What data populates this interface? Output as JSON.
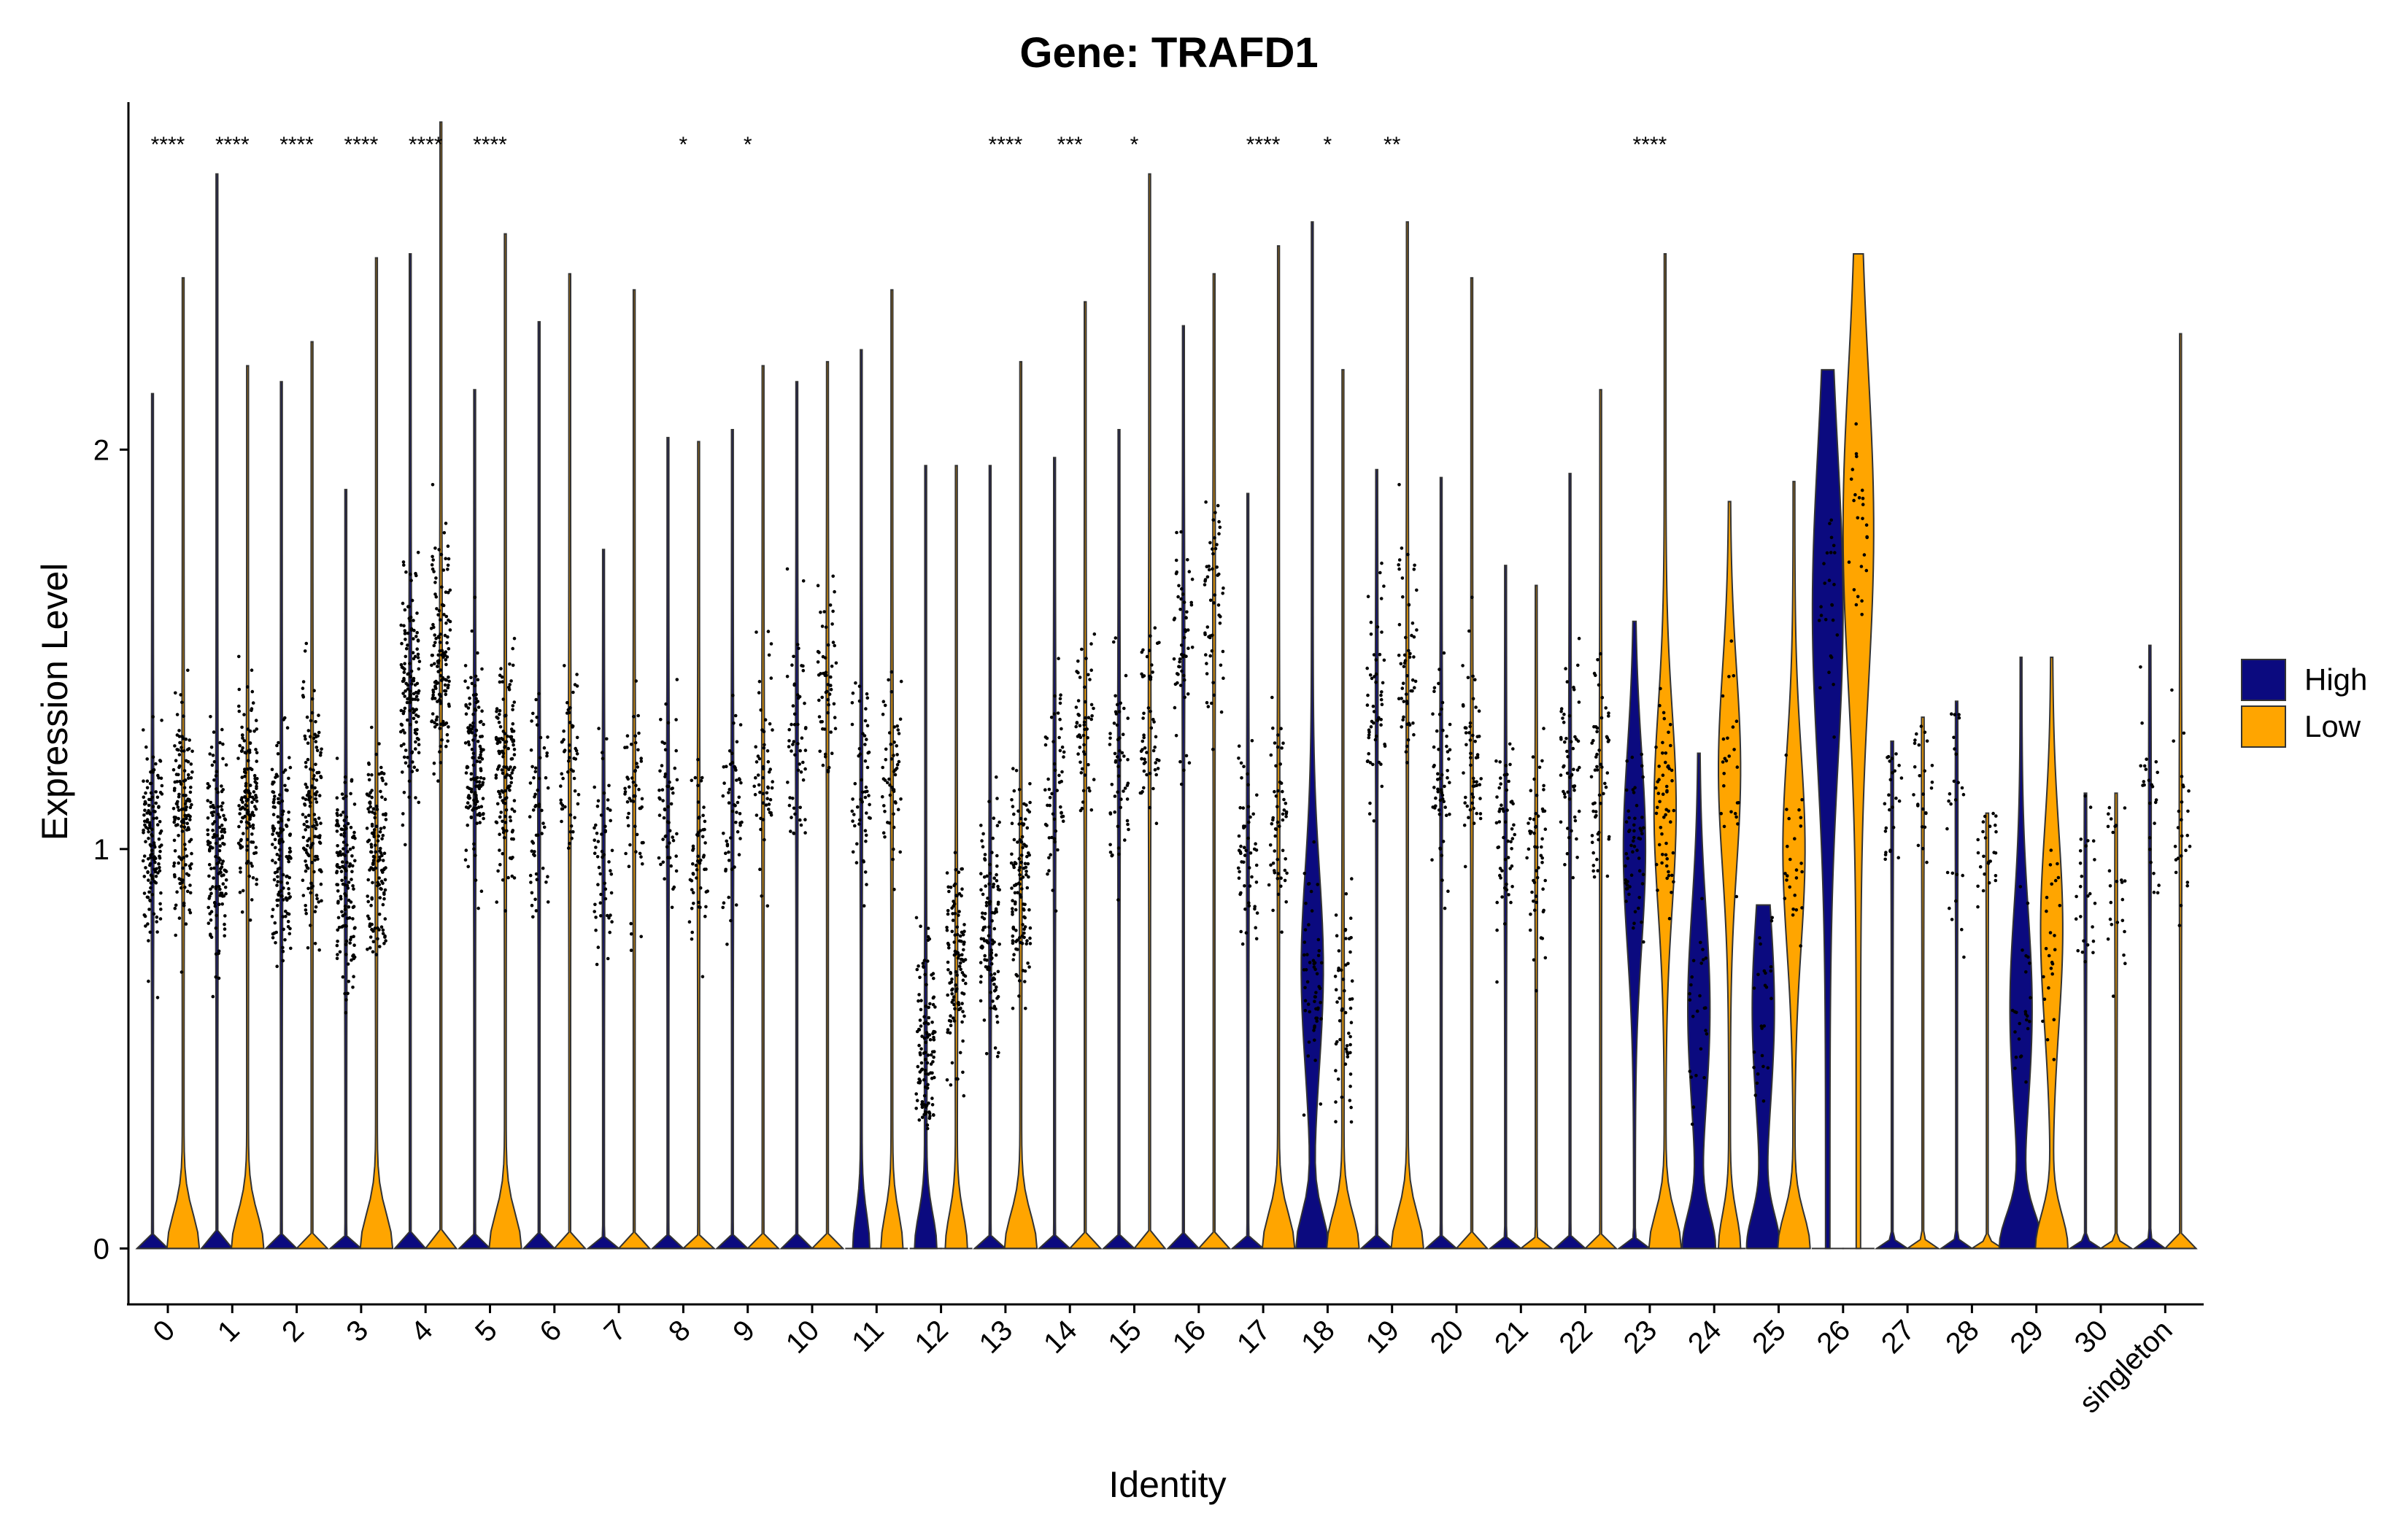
{
  "chart_data": {
    "type": "violin",
    "title": "Gene: TRAFD1",
    "xlabel": "Identity",
    "ylabel": "Expression Level",
    "ylim": [
      -0.14,
      2.87
    ],
    "yticks": [
      0,
      1,
      2
    ],
    "categories": [
      "0",
      "1",
      "2",
      "3",
      "4",
      "5",
      "6",
      "7",
      "8",
      "9",
      "10",
      "11",
      "12",
      "13",
      "14",
      "15",
      "16",
      "17",
      "18",
      "19",
      "20",
      "21",
      "22",
      "23",
      "24",
      "25",
      "26",
      "27",
      "28",
      "29",
      "30",
      "singleton"
    ],
    "legend": {
      "placement": "right",
      "items": [
        {
          "label": "High",
          "color": "#0b0a7f"
        },
        {
          "label": "Low",
          "color": "#ffa500"
        }
      ]
    },
    "significance": [
      "****",
      "****",
      "****",
      "****",
      "****",
      "****",
      "",
      "",
      "*",
      "*",
      "",
      "",
      "",
      "****",
      "***",
      "*",
      "",
      "****",
      "*",
      "**",
      "",
      "",
      "",
      "****",
      "",
      "",
      "",
      "",
      "",
      "",
      "",
      ""
    ],
    "series": [
      {
        "name": "High",
        "color": "#0b0a7f",
        "max": [
          2.14,
          2.69,
          2.17,
          1.9,
          2.49,
          2.15,
          2.32,
          1.75,
          2.03,
          2.05,
          2.17,
          2.25,
          1.96,
          1.96,
          1.98,
          2.05,
          2.31,
          1.89,
          2.57,
          1.95,
          1.93,
          1.71,
          1.94,
          1.57,
          1.24,
          0.86,
          2.2,
          1.27,
          1.37,
          1.48,
          1.14,
          1.51
        ],
        "median": [
          1.0,
          1.0,
          1.0,
          0.92,
          1.4,
          1.2,
          1.1,
          1.0,
          1.1,
          1.1,
          1.3,
          1.2,
          0.5,
          0.8,
          1.2,
          1.2,
          1.5,
          1.0,
          0.7,
          1.4,
          1.2,
          1.0,
          1.2,
          1.0,
          0.6,
          0.6,
          1.6,
          1.2,
          1.1,
          0.6,
          0.9,
          1.1
        ],
        "zero_frac": [
          0.0,
          0.0,
          0.0,
          0.0,
          0.0,
          0.0,
          0.0,
          0.0,
          0.0,
          0.0,
          0.0,
          0.15,
          0.2,
          0.0,
          0.0,
          0.0,
          0.0,
          0.0,
          0.3,
          0.0,
          0.0,
          0.0,
          0.0,
          0.0,
          0.3,
          0.3,
          0.0,
          0.0,
          0.0,
          0.4,
          0.0,
          0.0
        ]
      },
      {
        "name": "Low",
        "color": "#ffa500",
        "max": [
          2.43,
          2.21,
          2.27,
          2.48,
          2.82,
          2.54,
          2.44,
          2.4,
          2.02,
          2.21,
          2.22,
          2.4,
          1.96,
          2.22,
          2.37,
          2.69,
          2.44,
          2.51,
          2.2,
          2.57,
          2.43,
          1.66,
          2.15,
          2.49,
          1.87,
          1.92,
          2.49,
          1.33,
          1.09,
          1.48,
          1.14,
          2.29
        ],
        "median": [
          1.1,
          1.1,
          1.1,
          1.0,
          1.5,
          1.2,
          1.2,
          1.1,
          1.0,
          1.2,
          1.4,
          1.2,
          0.7,
          0.9,
          1.3,
          1.3,
          1.6,
          1.1,
          0.6,
          1.5,
          1.2,
          1.0,
          1.2,
          1.1,
          1.2,
          1.0,
          1.8,
          1.2,
          1.1,
          0.8,
          0.9,
          1.1
        ],
        "zero_frac": [
          0.3,
          0.3,
          0.0,
          0.3,
          0.0,
          0.3,
          0.0,
          0.0,
          0.0,
          0.0,
          0.0,
          0.2,
          0.2,
          0.3,
          0.0,
          0.0,
          0.0,
          0.3,
          0.3,
          0.3,
          0.0,
          0.0,
          0.0,
          0.3,
          0.2,
          0.3,
          0.0,
          0.0,
          0.0,
          0.3,
          0.0,
          0.0
        ]
      }
    ]
  }
}
